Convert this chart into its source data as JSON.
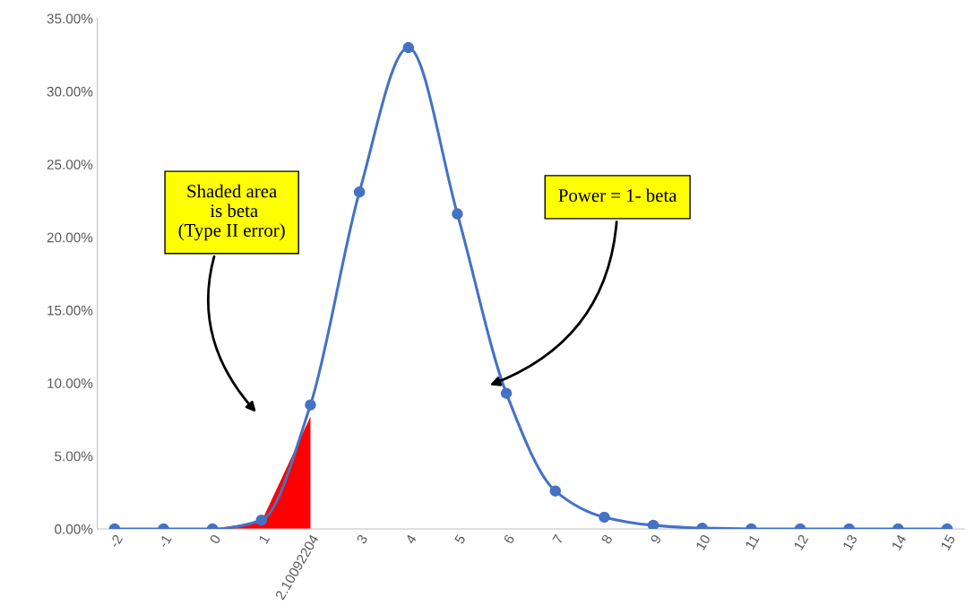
{
  "chart_data": {
    "type": "line",
    "categories": [
      "-2",
      "-1",
      "0",
      "1",
      "2.10092204",
      "3",
      "4",
      "5",
      "6",
      "7",
      "8",
      "9",
      "10",
      "11",
      "12",
      "13",
      "14",
      "15"
    ],
    "series": [
      {
        "type": "area",
        "color": "#ff0000",
        "values": [
          null,
          null,
          0,
          0.5,
          7.7,
          null,
          null,
          null,
          null,
          null,
          null,
          null,
          null,
          null,
          null,
          null,
          null,
          null
        ]
      },
      {
        "color": "#4472c4",
        "marker": "circle",
        "values": [
          0,
          0,
          0,
          0.6,
          8.5,
          23.1,
          33.0,
          21.6,
          9.3,
          2.6,
          0.8,
          0.25,
          0.05,
          0,
          0,
          0,
          0,
          0
        ]
      }
    ],
    "ylim": [
      0,
      35
    ],
    "yticks": [
      {
        "value": 0,
        "label": "0.00%"
      },
      {
        "value": 5,
        "label": "5.00%"
      },
      {
        "value": 10,
        "label": "10.00%"
      },
      {
        "value": 15,
        "label": "15.00%"
      },
      {
        "value": 20,
        "label": "20.00%"
      },
      {
        "value": 25,
        "label": "25.00%"
      },
      {
        "value": 30,
        "label": "30.00%"
      },
      {
        "value": 35,
        "label": "35.00%"
      }
    ],
    "line_style": "solid",
    "grid": false,
    "legend": false,
    "annotations": [
      "Shaded area\n is beta\n(Type II error)",
      "Power = 1- beta"
    ]
  }
}
